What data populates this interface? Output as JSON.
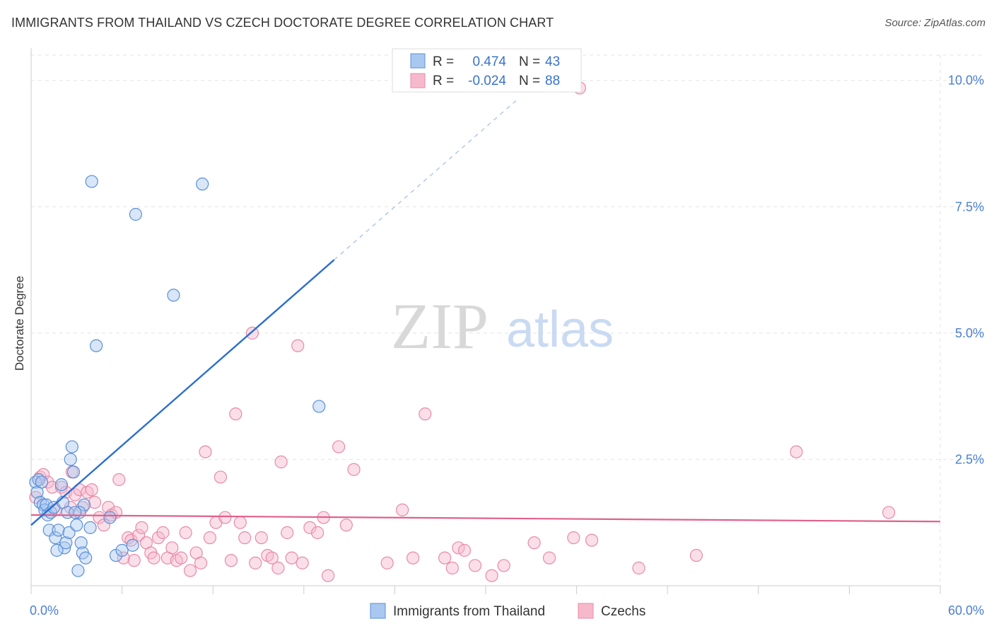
{
  "title": "IMMIGRANTS FROM THAILAND VS CZECH DOCTORATE DEGREE CORRELATION CHART",
  "source": "Source: ZipAtlas.com",
  "watermark": {
    "zip": "ZIP",
    "atlas": "atlas"
  },
  "colors": {
    "thailand_fill": "#a9c8f0",
    "thailand_stroke": "#5b8fd6",
    "thailand_line": "#2a6fcf",
    "czech_fill": "#f6b9cc",
    "czech_stroke": "#e88aa8",
    "czech_line": "#e0608c",
    "tick_label": "#4a7fd1",
    "grid": "#e3e3e3"
  },
  "legend_top": {
    "rows": [
      {
        "r_label": "R =",
        "r_value": "0.474",
        "n_label": "N =",
        "n_value": "43"
      },
      {
        "r_label": "R =",
        "r_value": "-0.024",
        "n_label": "N =",
        "n_value": "88"
      }
    ]
  },
  "legend_bottom": [
    "Immigrants from Thailand",
    "Czechs"
  ],
  "chart_data": {
    "type": "scatter",
    "title": "IMMIGRANTS FROM THAILAND VS CZECH DOCTORATE DEGREE CORRELATION CHART",
    "xlabel": "",
    "ylabel": "Doctorate Degree",
    "xlim": [
      0,
      60
    ],
    "ylim": [
      0,
      10.5
    ],
    "x_tick_labels": [
      "0.0%",
      "60.0%"
    ],
    "y_ticks": [
      2.5,
      5.0,
      7.5,
      10.0
    ],
    "y_tick_labels": [
      "2.5%",
      "5.0%",
      "7.5%",
      "10.0%"
    ],
    "grid": true,
    "legend_position": "top-center",
    "series": [
      {
        "name": "Immigrants from Thailand",
        "R": 0.474,
        "N": 43,
        "trend": {
          "x0": 0,
          "y0": 1.2,
          "x1": 20,
          "y1": 6.45,
          "dashed_to_x": 32,
          "dashed_to_y": 9.6
        },
        "points": [
          [
            0.3,
            2.05
          ],
          [
            0.5,
            2.1
          ],
          [
            0.4,
            1.85
          ],
          [
            0.6,
            1.65
          ],
          [
            0.8,
            1.6
          ],
          [
            0.9,
            1.5
          ],
          [
            1.0,
            1.6
          ],
          [
            1.1,
            1.4
          ],
          [
            1.2,
            1.1
          ],
          [
            1.3,
            1.45
          ],
          [
            1.5,
            1.55
          ],
          [
            1.6,
            0.95
          ],
          [
            1.8,
            1.1
          ],
          [
            2.0,
            2.0
          ],
          [
            2.1,
            1.65
          ],
          [
            2.2,
            0.75
          ],
          [
            2.3,
            0.85
          ],
          [
            2.4,
            1.45
          ],
          [
            2.5,
            1.05
          ],
          [
            2.6,
            2.5
          ],
          [
            2.7,
            2.75
          ],
          [
            2.8,
            2.25
          ],
          [
            3.0,
            1.2
          ],
          [
            3.1,
            0.3
          ],
          [
            3.3,
            0.85
          ],
          [
            3.4,
            0.65
          ],
          [
            3.5,
            1.6
          ],
          [
            3.6,
            0.55
          ],
          [
            3.9,
            1.15
          ],
          [
            4.0,
            8.0
          ],
          [
            4.3,
            4.75
          ],
          [
            5.2,
            1.35
          ],
          [
            5.6,
            0.6
          ],
          [
            6.0,
            0.7
          ],
          [
            6.7,
            0.8
          ],
          [
            6.9,
            7.35
          ],
          [
            9.4,
            5.75
          ],
          [
            11.3,
            7.95
          ],
          [
            19.0,
            3.55
          ],
          [
            3.2,
            1.45
          ],
          [
            1.7,
            0.7
          ],
          [
            0.7,
            2.05
          ],
          [
            2.9,
            1.45
          ]
        ]
      },
      {
        "name": "Czechs",
        "R": -0.024,
        "N": 88,
        "trend": {
          "x0": 0,
          "y0": 1.4,
          "x1": 60,
          "y1": 1.27
        },
        "points": [
          [
            0.3,
            1.75
          ],
          [
            0.6,
            2.15
          ],
          [
            0.8,
            2.2
          ],
          [
            1.1,
            2.05
          ],
          [
            1.4,
            1.95
          ],
          [
            1.6,
            1.5
          ],
          [
            2.0,
            1.95
          ],
          [
            2.3,
            1.85
          ],
          [
            2.6,
            1.55
          ],
          [
            2.7,
            2.25
          ],
          [
            2.9,
            1.8
          ],
          [
            3.2,
            1.9
          ],
          [
            3.4,
            1.55
          ],
          [
            3.7,
            1.85
          ],
          [
            4.0,
            1.9
          ],
          [
            4.2,
            1.65
          ],
          [
            4.5,
            1.35
          ],
          [
            4.8,
            1.2
          ],
          [
            5.1,
            1.55
          ],
          [
            5.3,
            1.4
          ],
          [
            5.6,
            1.45
          ],
          [
            5.8,
            2.1
          ],
          [
            6.1,
            0.55
          ],
          [
            6.4,
            0.95
          ],
          [
            6.6,
            0.9
          ],
          [
            6.8,
            0.5
          ],
          [
            7.1,
            1.0
          ],
          [
            7.3,
            1.15
          ],
          [
            7.6,
            0.85
          ],
          [
            7.9,
            0.65
          ],
          [
            8.1,
            0.55
          ],
          [
            8.4,
            0.95
          ],
          [
            8.7,
            1.05
          ],
          [
            9.0,
            0.55
          ],
          [
            9.3,
            0.75
          ],
          [
            9.6,
            0.5
          ],
          [
            9.9,
            0.55
          ],
          [
            10.2,
            1.05
          ],
          [
            10.5,
            0.3
          ],
          [
            10.9,
            0.65
          ],
          [
            11.2,
            0.45
          ],
          [
            11.5,
            2.65
          ],
          [
            11.8,
            0.95
          ],
          [
            12.2,
            1.25
          ],
          [
            12.5,
            2.15
          ],
          [
            12.8,
            1.35
          ],
          [
            13.2,
            0.5
          ],
          [
            13.5,
            3.4
          ],
          [
            13.8,
            1.25
          ],
          [
            14.1,
            0.95
          ],
          [
            14.6,
            5.0
          ],
          [
            14.8,
            0.45
          ],
          [
            15.2,
            0.95
          ],
          [
            15.6,
            0.6
          ],
          [
            15.9,
            0.55
          ],
          [
            16.3,
            0.35
          ],
          [
            16.5,
            2.45
          ],
          [
            16.9,
            1.05
          ],
          [
            17.2,
            0.55
          ],
          [
            17.6,
            4.75
          ],
          [
            17.9,
            0.45
          ],
          [
            18.4,
            1.15
          ],
          [
            18.9,
            1.05
          ],
          [
            19.3,
            1.35
          ],
          [
            19.6,
            0.2
          ],
          [
            20.3,
            2.75
          ],
          [
            20.8,
            1.2
          ],
          [
            21.3,
            2.3
          ],
          [
            23.5,
            0.45
          ],
          [
            24.5,
            1.5
          ],
          [
            25.2,
            0.55
          ],
          [
            26.0,
            3.4
          ],
          [
            27.3,
            0.55
          ],
          [
            28.2,
            0.75
          ],
          [
            28.6,
            0.7
          ],
          [
            29.3,
            0.4
          ],
          [
            30.4,
            0.2
          ],
          [
            31.2,
            0.4
          ],
          [
            33.2,
            0.85
          ],
          [
            34.2,
            0.55
          ],
          [
            35.8,
            0.95
          ],
          [
            37.0,
            0.9
          ],
          [
            40.1,
            0.35
          ],
          [
            43.9,
            0.6
          ],
          [
            50.5,
            2.65
          ],
          [
            56.6,
            1.45
          ],
          [
            36.2,
            9.85
          ],
          [
            27.8,
            0.35
          ]
        ]
      }
    ]
  }
}
